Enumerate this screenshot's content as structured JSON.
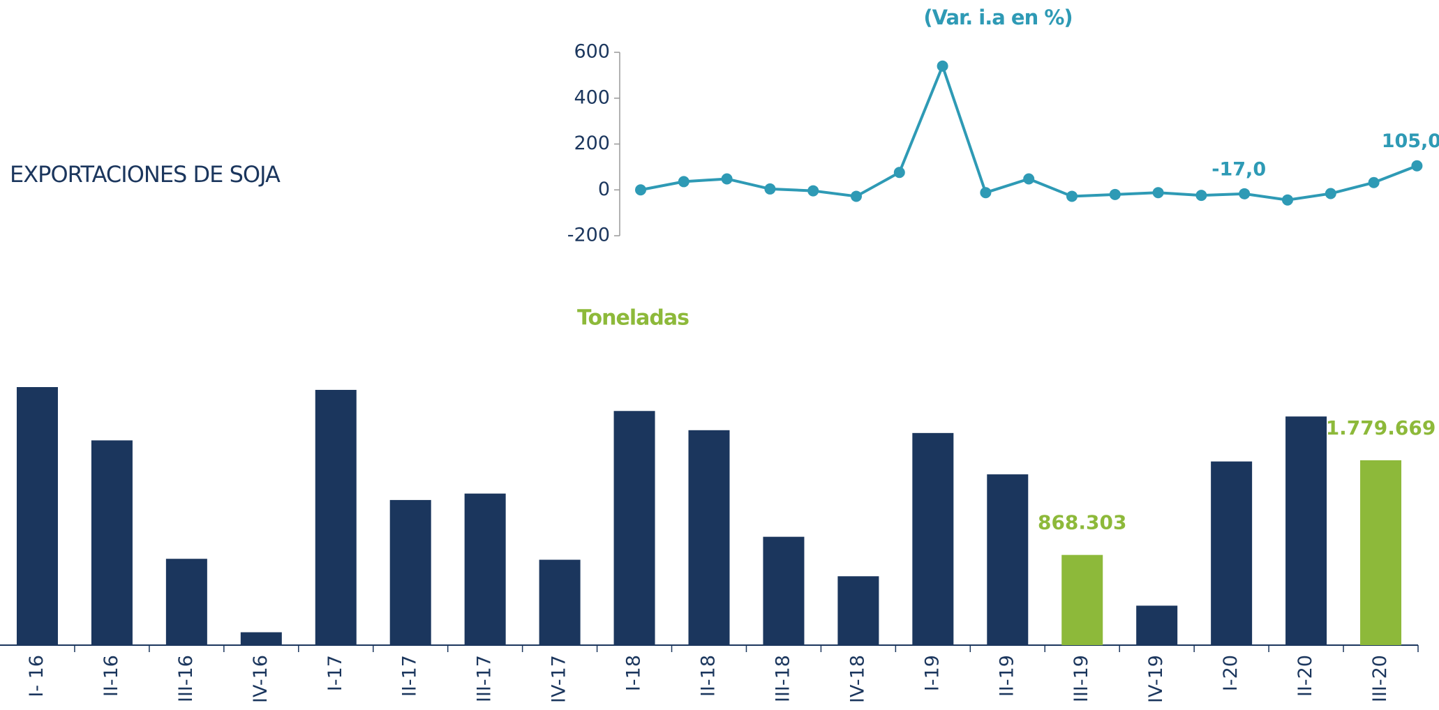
{
  "title": "EXPORTACIONES DE SOJA",
  "chart_data": [
    {
      "type": "bar",
      "title": "Toneladas",
      "categories": [
        "I- 16",
        "II-16",
        "III-16",
        "IV-16",
        "I-17",
        "II-17",
        "III-17",
        "IV-17",
        "I-18",
        "II-18",
        "III-18",
        "IV-18",
        "I-19",
        "II-19",
        "III-19",
        "IV-19",
        "I-20",
        "II-20",
        "III-20"
      ],
      "values": [
        2484000,
        1971000,
        831000,
        124000,
        2457000,
        1397000,
        1459000,
        822000,
        2254000,
        2069000,
        1043000,
        663000,
        2042000,
        1644000,
        868303,
        380000,
        1768000,
        2201000,
        1779669
      ],
      "value_labels": [
        null,
        null,
        null,
        null,
        null,
        null,
        null,
        null,
        null,
        null,
        null,
        null,
        null,
        null,
        "868.303",
        null,
        null,
        null,
        "1.779.669"
      ],
      "colors": [
        "#1b365d",
        "#1b365d",
        "#1b365d",
        "#1b365d",
        "#1b365d",
        "#1b365d",
        "#1b365d",
        "#1b365d",
        "#1b365d",
        "#1b365d",
        "#1b365d",
        "#1b365d",
        "#1b365d",
        "#1b365d",
        "#8db93a",
        "#1b365d",
        "#1b365d",
        "#1b365d",
        "#8db93a"
      ]
    },
    {
      "type": "line",
      "title": "(Var. i.a en %)",
      "color": "#2e9ab5",
      "values": [
        0,
        36,
        48,
        4,
        -4,
        -28,
        76,
        540,
        -12,
        48,
        -28,
        -20,
        -12,
        -24,
        -17,
        -44,
        -16,
        32,
        105
      ],
      "value_labels": [
        null,
        null,
        null,
        null,
        null,
        null,
        null,
        null,
        null,
        null,
        null,
        null,
        null,
        null,
        "-17,0",
        null,
        null,
        null,
        "105,0"
      ],
      "ylim": [
        -200,
        600
      ],
      "yticks": [
        -200,
        0,
        200,
        400,
        600
      ]
    }
  ]
}
